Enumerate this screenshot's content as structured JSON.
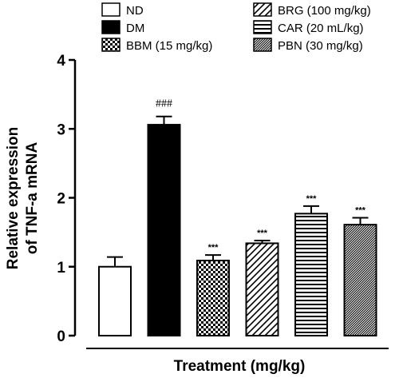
{
  "chart_data": {
    "type": "bar",
    "ylabel_line1": "Relative expression",
    "ylabel_line2": "of TNF-a mRNA",
    "xlabel": "Treatment (mg/kg)",
    "ylim": [
      0,
      4
    ],
    "yticks": [
      0,
      1,
      2,
      3,
      4
    ],
    "grid": false,
    "legend_position": "top",
    "series": [
      {
        "name": "ND",
        "value": 1.0,
        "error": 0.14,
        "pattern": "white",
        "significance": ""
      },
      {
        "name": "DM",
        "value": 3.06,
        "error": 0.12,
        "pattern": "black",
        "significance": "###"
      },
      {
        "name": "BBM (15 mg/kg)",
        "value": 1.09,
        "error": 0.08,
        "pattern": "checker",
        "significance": "***"
      },
      {
        "name": "BRG (100 mg/kg)",
        "value": 1.34,
        "error": 0.04,
        "pattern": "diagonal",
        "significance": "***"
      },
      {
        "name": "CAR (20 mL/kg)",
        "value": 1.77,
        "error": 0.11,
        "pattern": "horizontal",
        "significance": "***"
      },
      {
        "name": "PBN (30 mg/kg)",
        "value": 1.61,
        "error": 0.1,
        "pattern": "dense-diagonal",
        "significance": "***"
      }
    ]
  }
}
